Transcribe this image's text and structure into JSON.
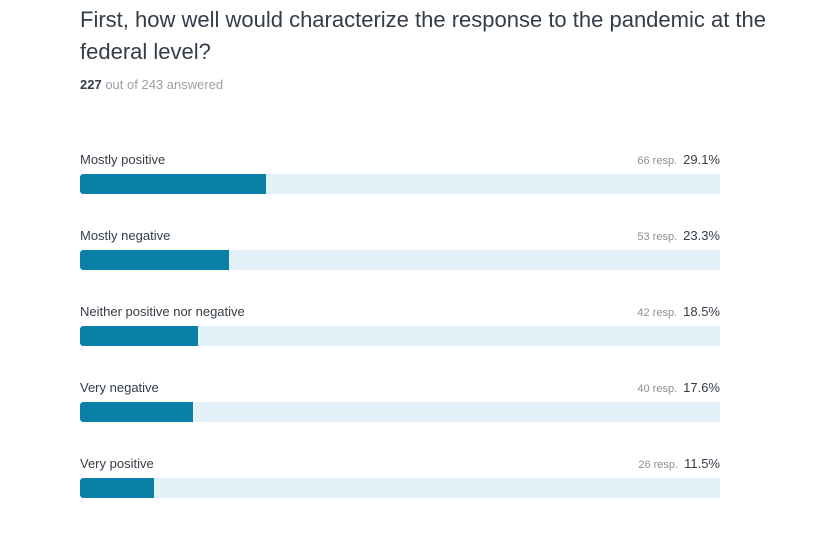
{
  "header": {
    "title": "First, how well would characterize the response to the pandemic at the federal level?",
    "answered": "227",
    "answered_text": "out of 243 answered"
  },
  "xlim": [
    0,
    100
  ],
  "options": [
    {
      "label": "Mostly positive",
      "responses": "66 resp.",
      "percent": {
        "value": 29.1,
        "label": "29.1%"
      }
    },
    {
      "label": "Mostly negative",
      "responses": "53 resp.",
      "percent": {
        "value": 23.3,
        "label": "23.3%"
      }
    },
    {
      "label": "Neither positive nor negative",
      "responses": "42 resp.",
      "percent": {
        "value": 18.5,
        "label": "18.5%"
      }
    },
    {
      "label": "Very negative",
      "responses": "40 resp.",
      "percent": {
        "value": 17.6,
        "label": "17.6%"
      }
    },
    {
      "label": "Very positive",
      "responses": "26 resp.",
      "percent": {
        "value": 11.5,
        "label": "11.5%"
      }
    }
  ]
}
